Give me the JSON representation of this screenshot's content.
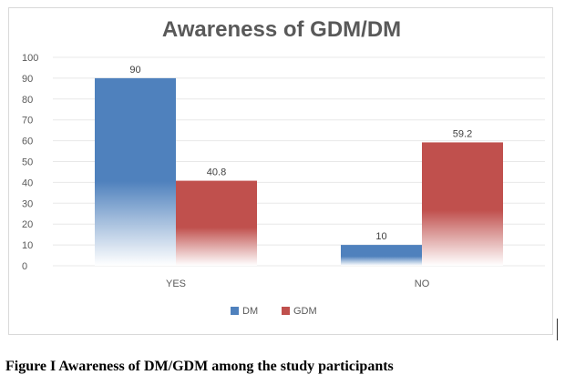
{
  "chart_data": {
    "type": "bar",
    "title": "Awareness of GDM/DM",
    "categories": [
      "YES",
      "NO"
    ],
    "series": [
      {
        "name": "DM",
        "values": [
          90,
          10
        ],
        "labels": [
          "90",
          "10"
        ],
        "color": "#4f81bd"
      },
      {
        "name": "GDM",
        "values": [
          40.8,
          59.2
        ],
        "labels": [
          "40.8",
          "59.2"
        ],
        "color": "#c0504d"
      }
    ],
    "ylim": [
      0,
      100
    ],
    "yticks": [
      0,
      10,
      20,
      30,
      40,
      50,
      60,
      70,
      80,
      90,
      100
    ],
    "grid": true,
    "legend_position": "bottom",
    "xlabel": "",
    "ylabel": ""
  },
  "caption": "Figure I Awareness of DM/GDM among the study participants"
}
